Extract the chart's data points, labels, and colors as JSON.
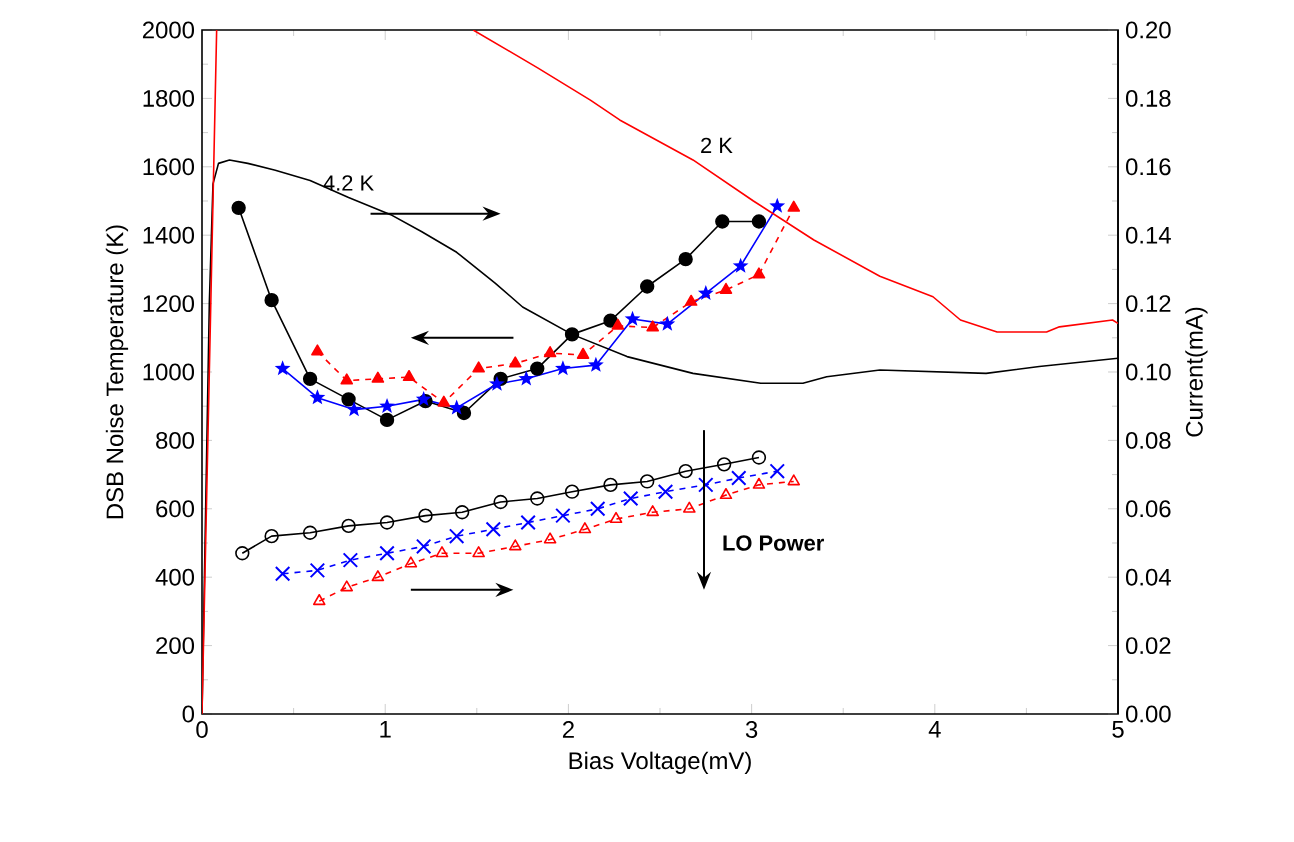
{
  "chart_data": {
    "type": "line",
    "xlabel": "Bias Voltage(mV)",
    "ylabel": "DSB Noise Temperature (K)",
    "y2label": "Current(mA)",
    "xlim": [
      0,
      5
    ],
    "xticks": [
      0,
      1,
      2,
      3,
      4,
      5
    ],
    "ylim": [
      0,
      2000
    ],
    "yticks": [
      0,
      200,
      400,
      600,
      800,
      1000,
      1200,
      1400,
      1600,
      1800,
      2000
    ],
    "y2lim": [
      0,
      0.2
    ],
    "y2ticks": [
      {
        "value": 0,
        "label": "0.00"
      },
      {
        "value": 0.02,
        "label": "0.02"
      },
      {
        "value": 0.04,
        "label": "0.04"
      },
      {
        "value": 0.06,
        "label": "0.06"
      },
      {
        "value": 0.08,
        "label": "0.08"
      },
      {
        "value": 0.1,
        "label": "0.10"
      },
      {
        "value": 0.12,
        "label": "0.12"
      },
      {
        "value": 0.14,
        "label": "0.14"
      },
      {
        "value": 0.16,
        "label": "0.16"
      },
      {
        "value": 0.18,
        "label": "0.18"
      },
      {
        "value": 0.2,
        "label": "0.20"
      }
    ],
    "annotations": [
      "LO Power"
    ],
    "series": [
      {
        "color": "#000000",
        "marker": "circle",
        "line_style": "solid",
        "x": [
          0.2,
          0.38,
          0.59,
          0.8,
          1.01,
          1.22,
          1.43,
          1.63,
          1.83,
          2.02,
          2.23,
          2.43,
          2.64,
          2.84,
          3.04
        ],
        "values": [
          1480,
          1210,
          980,
          920,
          860,
          915,
          880,
          980,
          1010,
          1110,
          1150,
          1250,
          1330,
          1440,
          1440
        ]
      },
      {
        "color": "#0000ff",
        "marker": "star",
        "line_style": "solid",
        "x": [
          0.44,
          0.63,
          0.83,
          1.01,
          1.21,
          1.39,
          1.61,
          1.77,
          1.97,
          2.15,
          2.35,
          2.54,
          2.75,
          2.94,
          3.14
        ],
        "values": [
          1010,
          925,
          890,
          900,
          920,
          895,
          965,
          980,
          1010,
          1020,
          1155,
          1140,
          1230,
          1310,
          1485
        ]
      },
      {
        "color": "#ff0000",
        "marker": "triangle",
        "line_style": "dashed",
        "x": [
          0.63,
          0.79,
          0.96,
          1.13,
          1.32,
          1.51,
          1.71,
          1.9,
          2.08,
          2.27,
          2.46,
          2.67,
          2.86,
          3.04,
          3.23
        ],
        "values": [
          1060,
          975,
          980,
          985,
          910,
          1010,
          1025,
          1055,
          1050,
          1135,
          1130,
          1205,
          1240,
          1285,
          1480
        ]
      },
      {
        "color": "#000000",
        "marker": "circle",
        "line_style": "solid",
        "axis": "y2",
        "x": [
          0.22,
          0.38,
          0.59,
          0.8,
          1.01,
          1.22,
          1.42,
          1.63,
          1.83,
          2.02,
          2.23,
          2.43,
          2.64,
          2.85,
          3.04
        ],
        "values": [
          0.047,
          0.052,
          0.053,
          0.055,
          0.056,
          0.058,
          0.059,
          0.062,
          0.063,
          0.065,
          0.067,
          0.068,
          0.071,
          0.073,
          0.075
        ]
      },
      {
        "color": "#0000ff",
        "marker": "cross",
        "line_style": "dashed",
        "axis": "y2",
        "x": [
          0.44,
          0.63,
          0.81,
          1.01,
          1.21,
          1.39,
          1.59,
          1.78,
          1.97,
          2.16,
          2.34,
          2.53,
          2.75,
          2.93,
          3.14
        ],
        "values": [
          0.041,
          0.042,
          0.045,
          0.047,
          0.049,
          0.052,
          0.054,
          0.056,
          0.058,
          0.06,
          0.063,
          0.065,
          0.067,
          0.069,
          0.071
        ]
      },
      {
        "color": "#ff0000",
        "marker": "triangle",
        "line_style": "dashed",
        "axis": "y2",
        "x": [
          0.64,
          0.79,
          0.96,
          1.14,
          1.31,
          1.51,
          1.71,
          1.9,
          2.09,
          2.26,
          2.46,
          2.66,
          2.86,
          3.04,
          3.23
        ],
        "values": [
          0.033,
          0.037,
          0.04,
          0.044,
          0.047,
          0.047,
          0.049,
          0.051,
          0.054,
          0.057,
          0.059,
          0.06,
          0.064,
          0.067,
          0.068
        ]
      },
      {
        "name": "4.2 K",
        "color": "#000000",
        "marker": "none",
        "line_style": "solid",
        "axis": "y2",
        "x": [
          0,
          0.02,
          0.04,
          0.06,
          0.09,
          0.15,
          0.25,
          0.4,
          0.59,
          0.8,
          1.03,
          1.2,
          1.39,
          1.6,
          1.75,
          2.02,
          2.32,
          2.68,
          3.05,
          3.28,
          3.41,
          3.7,
          4.28,
          4.57,
          5.0
        ],
        "values": [
          0,
          0.06,
          0.12,
          0.155,
          0.161,
          0.162,
          0.161,
          0.159,
          0.156,
          0.151,
          0.146,
          0.141,
          0.135,
          0.126,
          0.119,
          0.111,
          0.1045,
          0.0996,
          0.0967,
          0.0967,
          0.0986,
          0.1006,
          0.0996,
          0.1016,
          0.104
        ]
      },
      {
        "name": "2 K",
        "color": "#ff0000",
        "marker": "none",
        "line_style": "solid",
        "axis": "y2",
        "x": [
          0,
          0.02,
          0.04,
          0.06,
          0.08,
          0.8,
          1.48,
          1.83,
          2.12,
          2.28,
          2.68,
          3.01,
          3.34,
          3.7,
          3.99,
          4.14,
          4.34,
          4.61,
          4.68,
          4.97,
          5.0
        ],
        "values": [
          0,
          0.05,
          0.1,
          0.15,
          0.2,
          null,
          0.2,
          0.189,
          0.1795,
          0.1737,
          0.162,
          0.15,
          0.1386,
          0.128,
          0.122,
          0.1152,
          0.1117,
          0.1117,
          0.1132,
          0.1152,
          0.1142
        ]
      }
    ]
  }
}
